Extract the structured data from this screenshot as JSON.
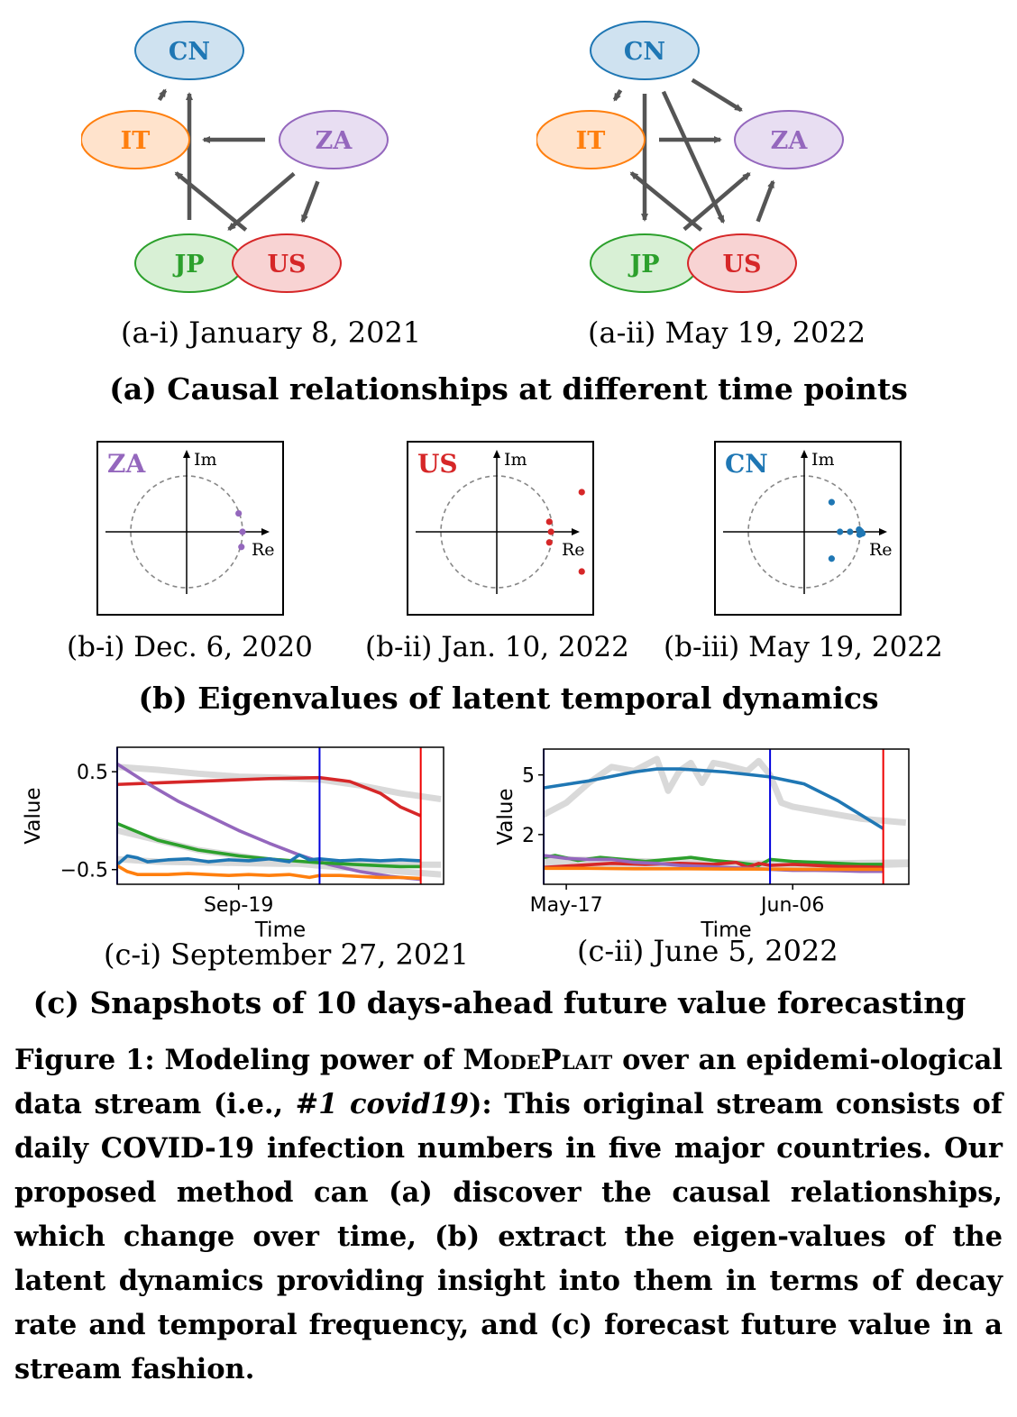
{
  "graphs": [
    {
      "caption": "(a-i) January 8, 2021",
      "nodes": [
        {
          "id": "CN",
          "label": "CN"
        },
        {
          "id": "IT",
          "label": "IT"
        },
        {
          "id": "ZA",
          "label": "ZA"
        },
        {
          "id": "JP",
          "label": "JP"
        },
        {
          "id": "US",
          "label": "US"
        }
      ],
      "edges": [
        {
          "from": "IT",
          "to": "CN"
        },
        {
          "from": "JP",
          "to": "CN"
        },
        {
          "from": "ZA",
          "to": "IT"
        },
        {
          "from": "US",
          "to": "IT"
        },
        {
          "from": "ZA",
          "to": "JP"
        },
        {
          "from": "ZA",
          "to": "US"
        }
      ]
    },
    {
      "caption": "(a-ii) May 19, 2022",
      "nodes": [
        {
          "id": "CN",
          "label": "CN"
        },
        {
          "id": "IT",
          "label": "IT"
        },
        {
          "id": "ZA",
          "label": "ZA"
        },
        {
          "id": "JP",
          "label": "JP"
        },
        {
          "id": "US",
          "label": "US"
        }
      ],
      "edges": [
        {
          "from": "CN",
          "to": "IT"
        },
        {
          "from": "CN",
          "to": "ZA"
        },
        {
          "from": "CN",
          "to": "JP"
        },
        {
          "from": "CN",
          "to": "US"
        },
        {
          "from": "IT",
          "to": "ZA"
        },
        {
          "from": "US",
          "to": "IT"
        },
        {
          "from": "JP",
          "to": "ZA"
        },
        {
          "from": "US",
          "to": "ZA"
        },
        {
          "from": "US",
          "to": "JP"
        }
      ]
    }
  ],
  "section_a": "(a) Causal relationships at different time points",
  "eigen_panels": [
    {
      "country": "ZA",
      "color": "#9467bd",
      "im_label": "Im",
      "re_label": "Re",
      "caption": "(b-i) Dec. 6, 2020",
      "points": [
        [
          0.93,
          0.33
        ],
        [
          1.0,
          0.0
        ],
        [
          0.98,
          -0.27
        ]
      ]
    },
    {
      "country": "US",
      "color": "#d62728",
      "im_label": "Im",
      "re_label": "Re",
      "caption": "(b-ii) Jan. 10, 2022",
      "points": [
        [
          1.52,
          0.71
        ],
        [
          0.94,
          0.18
        ],
        [
          0.97,
          0.0
        ],
        [
          0.94,
          -0.19
        ],
        [
          1.52,
          -0.71
        ]
      ]
    },
    {
      "country": "CN",
      "color": "#1f77b4",
      "im_label": "Im",
      "re_label": "Re",
      "caption": "(b-iii) May 19, 2022",
      "points": [
        [
          0.49,
          0.53
        ],
        [
          0.64,
          0.0
        ],
        [
          0.82,
          0.0
        ],
        [
          1.0,
          0.02
        ],
        [
          1.02,
          0.0
        ],
        [
          1.04,
          -0.03
        ],
        [
          0.98,
          0.04
        ],
        [
          0.99,
          -0.05
        ],
        [
          0.49,
          -0.48
        ]
      ]
    }
  ],
  "section_b": "(b) Eigenvalues of latent temporal dynamics",
  "chart_data": [
    {
      "type": "line",
      "caption": "(c-i) September 27, 2021",
      "xlabel": "Time",
      "ylabel": "Value",
      "xticks": [
        {
          "label": "Sep-19",
          "x": 12
        }
      ],
      "yticks": [
        0.5,
        -0.5
      ],
      "yticklabels": [
        "0.5",
        "−0.5"
      ],
      "xlim": [
        0,
        30
      ],
      "ylim": [
        -0.65,
        0.75
      ],
      "vlines": [
        {
          "x": 0,
          "color": "#0000dd"
        },
        {
          "x": 20,
          "color": "#0000dd"
        },
        {
          "x": 30,
          "color": "#ee0000"
        }
      ],
      "ghost": [
        {
          "x": [
            0,
            4,
            8,
            12,
            16,
            20,
            24,
            28,
            32
          ],
          "y": [
            0.55,
            0.52,
            0.48,
            0.45,
            0.44,
            0.42,
            0.36,
            0.28,
            0.22
          ]
        },
        {
          "x": [
            -2,
            0,
            4,
            8,
            12,
            16,
            20,
            24,
            28,
            32
          ],
          "y": [
            -0.05,
            -0.1,
            -0.2,
            -0.3,
            -0.36,
            -0.42,
            -0.46,
            -0.49,
            -0.52,
            -0.55
          ]
        },
        {
          "x": [
            -2,
            4,
            10,
            16,
            22,
            28,
            32
          ],
          "y": [
            -0.38,
            -0.42,
            -0.43,
            -0.44,
            -0.44,
            -0.45,
            -0.45
          ]
        }
      ],
      "series": [
        {
          "color": "#d62728",
          "x": [
            0,
            5,
            10,
            15,
            20,
            23,
            26,
            28,
            30
          ],
          "y": [
            0.37,
            0.39,
            0.41,
            0.43,
            0.44,
            0.4,
            0.28,
            0.14,
            0.05
          ]
        },
        {
          "color": "#9467bd",
          "x": [
            0,
            3,
            6,
            9,
            12,
            15,
            18,
            21,
            24,
            27,
            30
          ],
          "y": [
            0.58,
            0.38,
            0.2,
            0.05,
            -0.1,
            -0.23,
            -0.35,
            -0.45,
            -0.52,
            -0.57,
            -0.6
          ]
        },
        {
          "color": "#2ca02c",
          "x": [
            0,
            4,
            8,
            12,
            16,
            20,
            24,
            28,
            30
          ],
          "y": [
            -0.03,
            -0.2,
            -0.3,
            -0.36,
            -0.4,
            -0.43,
            -0.45,
            -0.47,
            -0.47
          ]
        },
        {
          "color": "#1f77b4",
          "x": [
            0,
            1,
            2,
            3,
            5,
            7,
            9,
            11,
            13,
            15,
            17,
            18,
            19,
            20,
            22,
            24,
            26,
            28,
            30
          ],
          "y": [
            -0.45,
            -0.36,
            -0.38,
            -0.42,
            -0.4,
            -0.39,
            -0.42,
            -0.4,
            -0.41,
            -0.39,
            -0.42,
            -0.35,
            -0.4,
            -0.39,
            -0.41,
            -0.4,
            -0.41,
            -0.4,
            -0.41
          ]
        },
        {
          "color": "#ff7f0e",
          "x": [
            0,
            1,
            2,
            3,
            5,
            7,
            9,
            11,
            13,
            15,
            17,
            19,
            20,
            22,
            24,
            26,
            28,
            30
          ],
          "y": [
            -0.46,
            -0.52,
            -0.55,
            -0.55,
            -0.55,
            -0.54,
            -0.55,
            -0.56,
            -0.55,
            -0.56,
            -0.55,
            -0.58,
            -0.56,
            -0.56,
            -0.57,
            -0.58,
            -0.58,
            -0.59
          ]
        }
      ]
    },
    {
      "type": "line",
      "caption": "(c-ii) June 5, 2022",
      "xlabel": "Time",
      "ylabel": "Value",
      "xticks": [
        {
          "label": "May-17",
          "x": 2
        },
        {
          "label": "Jun-06",
          "x": 22
        }
      ],
      "yticks": [
        5,
        2
      ],
      "yticklabels": [
        "5",
        "2"
      ],
      "xlim": [
        0,
        30
      ],
      "ylim": [
        -0.5,
        6.3
      ],
      "vlines": [
        {
          "x": 0,
          "color": "#0000dd"
        },
        {
          "x": 20,
          "color": "#0000dd"
        },
        {
          "x": 30,
          "color": "#ee0000"
        }
      ],
      "ghost": [
        {
          "x": [
            -2,
            0,
            2,
            4,
            6,
            8,
            10,
            11,
            12,
            13,
            14,
            15,
            16,
            18,
            19,
            20,
            21,
            22,
            24,
            26,
            28,
            32
          ],
          "y": [
            2.6,
            3.0,
            3.6,
            4.6,
            5.4,
            5.2,
            5.8,
            4.2,
            5.2,
            5.6,
            4.6,
            5.6,
            5.5,
            5.2,
            5.7,
            5.0,
            3.6,
            3.4,
            3.2,
            3.0,
            2.8,
            2.6
          ]
        },
        {
          "x": [
            -2,
            4,
            10,
            16,
            22,
            28,
            34
          ],
          "y": [
            0.5,
            0.45,
            0.45,
            0.42,
            0.42,
            0.45,
            0.55
          ]
        },
        {
          "x": [
            -2,
            6,
            12,
            18,
            24,
            34
          ],
          "y": [
            0.8,
            0.7,
            0.6,
            0.55,
            0.55,
            0.6
          ]
        }
      ],
      "series": [
        {
          "color": "#1f77b4",
          "x": [
            0,
            4,
            8,
            10,
            12,
            16,
            20,
            23,
            26,
            28,
            30
          ],
          "y": [
            4.35,
            4.7,
            5.15,
            5.3,
            5.3,
            5.15,
            4.9,
            4.55,
            3.7,
            3.0,
            2.3
          ]
        },
        {
          "color": "#2ca02c",
          "x": [
            0,
            1,
            3,
            5,
            7,
            9,
            11,
            13,
            15,
            17,
            19,
            20,
            22,
            24,
            26,
            28,
            30
          ],
          "y": [
            0.85,
            0.95,
            0.7,
            0.85,
            0.75,
            0.65,
            0.75,
            0.85,
            0.7,
            0.6,
            0.45,
            0.75,
            0.65,
            0.6,
            0.55,
            0.5,
            0.5
          ]
        },
        {
          "color": "#d62728",
          "x": [
            0,
            3,
            6,
            9,
            12,
            15,
            17,
            18,
            19,
            20,
            22,
            24,
            26,
            28,
            30
          ],
          "y": [
            0.35,
            0.45,
            0.55,
            0.5,
            0.55,
            0.5,
            0.6,
            0.35,
            0.55,
            0.45,
            0.5,
            0.45,
            0.4,
            0.38,
            0.35
          ]
        },
        {
          "color": "#9467bd",
          "x": [
            0,
            2,
            4,
            6,
            8,
            10,
            12,
            14,
            16,
            18,
            20,
            22,
            24,
            26,
            28,
            30
          ],
          "y": [
            0.95,
            0.8,
            0.75,
            0.75,
            0.6,
            0.55,
            0.45,
            0.4,
            0.35,
            0.3,
            0.25,
            0.2,
            0.2,
            0.18,
            0.15,
            0.15
          ]
        },
        {
          "color": "#ff7f0e",
          "x": [
            0,
            4,
            8,
            12,
            16,
            20,
            24,
            28,
            30
          ],
          "y": [
            0.3,
            0.3,
            0.28,
            0.28,
            0.27,
            0.26,
            0.25,
            0.25,
            0.25
          ]
        }
      ]
    }
  ],
  "section_c": "(c) Snapshots of 10 days-ahead future value forecasting",
  "figure_caption": {
    "p1": "Figure 1: Modeling power of ",
    "method": "ModePlait",
    "p2": " over an epidemi-ological data stream (i.e., ",
    "dataset": "#1 covid19",
    "p3": "): This original stream consists of daily COVID-19 infection numbers in five major countries. Our proposed method can (a) discover the causal relationships, which change over time, (b) extract the eigen-values of the latent dynamics providing insight into them in terms of decay rate and temporal frequency, and (c) forecast future value in a stream fashion."
  },
  "colors": {
    "CN": {
      "fill": "#cfe2f0",
      "stroke": "#1f77b4",
      "text": "#1f77b4"
    },
    "IT": {
      "fill": "#ffe3cc",
      "stroke": "#ff7f0e",
      "text": "#ff7f0e"
    },
    "ZA": {
      "fill": "#e8def2",
      "stroke": "#9467bd",
      "text": "#9467bd"
    },
    "JP": {
      "fill": "#d8f0d5",
      "stroke": "#2ca02c",
      "text": "#2ca02c"
    },
    "US": {
      "fill": "#f8d3d3",
      "stroke": "#d62728",
      "text": "#d62728"
    },
    "edge": "#555555"
  }
}
